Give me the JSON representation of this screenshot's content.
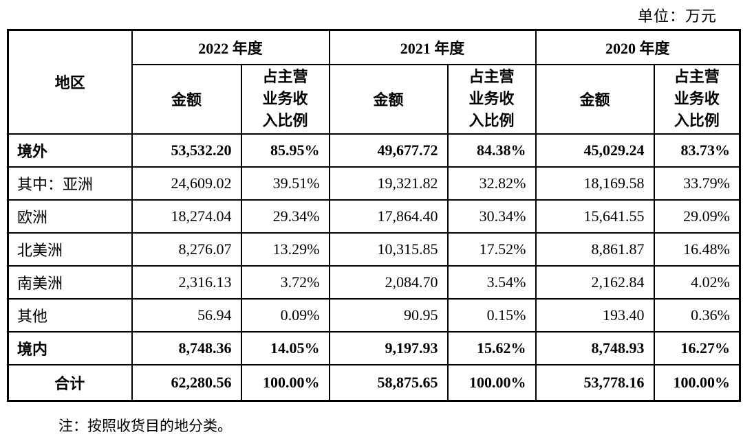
{
  "unit_label": "单位：万元",
  "note": "注：按照收货目的地分类。",
  "table": {
    "region_header": "地区",
    "year_groups": [
      "2022 年度",
      "2021 年度",
      "2020 年度"
    ],
    "amount_header": "金额",
    "ratio_header": "占主营\n业务收\n入比例",
    "rows": [
      {
        "region": "境外",
        "bold": true,
        "center": false,
        "values": [
          "53,532.20",
          "85.95%",
          "49,677.72",
          "84.38%",
          "45,029.24",
          "83.73%"
        ]
      },
      {
        "region": "其中：亚洲",
        "bold": false,
        "center": false,
        "values": [
          "24,609.02",
          "39.51%",
          "19,321.82",
          "32.82%",
          "18,169.58",
          "33.79%"
        ]
      },
      {
        "region": "欧洲",
        "bold": false,
        "center": false,
        "values": [
          "18,274.04",
          "29.34%",
          "17,864.40",
          "30.34%",
          "15,641.55",
          "29.09%"
        ]
      },
      {
        "region": "北美洲",
        "bold": false,
        "center": false,
        "values": [
          "8,276.07",
          "13.29%",
          "10,315.85",
          "17.52%",
          "8,861.87",
          "16.48%"
        ]
      },
      {
        "region": "南美洲",
        "bold": false,
        "center": false,
        "values": [
          "2,316.13",
          "3.72%",
          "2,084.70",
          "3.54%",
          "2,162.84",
          "4.02%"
        ]
      },
      {
        "region": "其他",
        "bold": false,
        "center": false,
        "values": [
          "56.94",
          "0.09%",
          "90.95",
          "0.15%",
          "193.40",
          "0.36%"
        ]
      },
      {
        "region": "境内",
        "bold": true,
        "center": false,
        "values": [
          "8,748.36",
          "14.05%",
          "9,197.93",
          "15.62%",
          "8,748.93",
          "16.27%"
        ]
      },
      {
        "region": "合计",
        "bold": true,
        "center": true,
        "total": true,
        "values": [
          "62,280.56",
          "100.00%",
          "58,875.65",
          "100.00%",
          "53,778.16",
          "100.00%"
        ]
      }
    ]
  }
}
